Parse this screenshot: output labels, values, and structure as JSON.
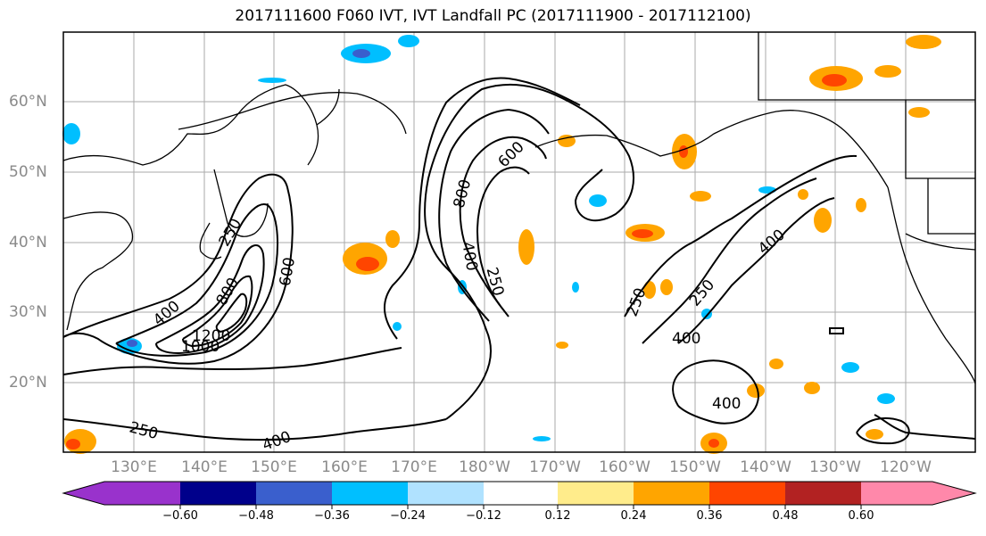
{
  "title": "2017111600 F060 IVT, IVT Landfall PC (2017111900 - 2017112100)",
  "latitude_labels": [
    "60°N",
    "50°N",
    "40°N",
    "30°N",
    "20°N"
  ],
  "longitude_labels": [
    "130°E",
    "140°E",
    "150°E",
    "160°E",
    "170°E",
    "180°W",
    "170°W",
    "160°W",
    "150°W",
    "140°W",
    "130°W",
    "120°W"
  ],
  "contour_labels": [
    "250",
    "800",
    "600",
    "1200",
    "1000",
    "400",
    "250",
    "400",
    "800",
    "600",
    "400",
    "250",
    "250",
    "250",
    "400",
    "400",
    "400"
  ],
  "colorbar": {
    "tick_labels": [
      "−0.60",
      "−0.48",
      "−0.36",
      "−0.24",
      "−0.12",
      "0.12",
      "0.24",
      "0.36",
      "0.48",
      "0.60"
    ],
    "colors": [
      "#9932cc",
      "#00008b",
      "#3a5fcd",
      "#00bfff",
      "#b0e2ff",
      "#ffffff",
      "#ffec8b",
      "#ffa500",
      "#ff4500",
      "#b22222",
      "#ff88aa"
    ]
  },
  "colors": {
    "land_outline": "#000000",
    "grid": "#aaaaaa",
    "contour": "#000000"
  }
}
